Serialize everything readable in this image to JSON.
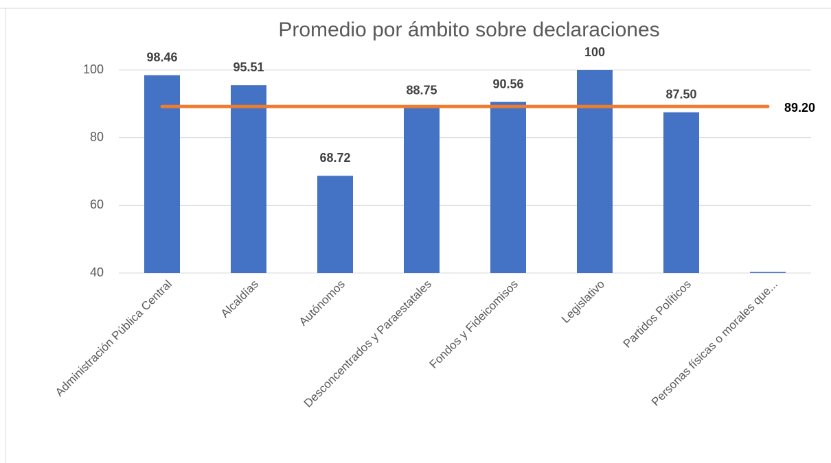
{
  "chart_data": {
    "type": "bar",
    "title": "Promedio por ámbito sobre declaraciones",
    "categories": [
      "Administración Pública Central",
      "Alcaldías",
      "Autónomos",
      "Desconcentrados y Paraestatales",
      "Fondos y Fideicomisos",
      "Legislativo",
      "Partidos Políticos",
      "Personas físicas o morales que..."
    ],
    "values": [
      98.46,
      95.51,
      68.72,
      88.75,
      90.56,
      100,
      87.5,
      40
    ],
    "value_labels": [
      "98.46",
      "95.51",
      "68.72",
      "88.75",
      "90.56",
      "100",
      "87.50",
      null
    ],
    "color": "#4472c4",
    "reference_line": {
      "value": 89.2,
      "label": "89.20",
      "color": "#ed7d31"
    },
    "ylim": [
      40,
      100
    ],
    "yticks": [
      40,
      60,
      80,
      100
    ],
    "grid": true
  }
}
